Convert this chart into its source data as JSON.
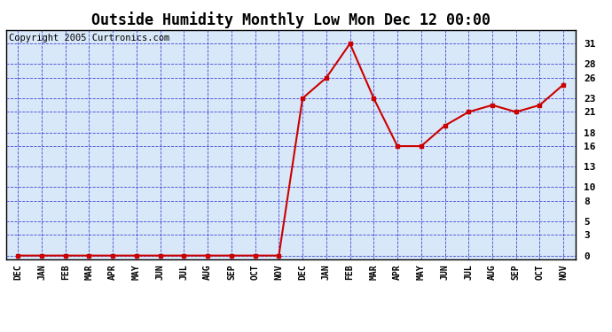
{
  "title": "Outside Humidity Monthly Low Mon Dec 12 00:00",
  "copyright": "Copyright 2005 Curtronics.com",
  "x_labels": [
    "DEC",
    "JAN",
    "FEB",
    "MAR",
    "APR",
    "MAY",
    "JUN",
    "JUL",
    "AUG",
    "SEP",
    "OCT",
    "NOV",
    "DEC",
    "JAN",
    "FEB",
    "MAR",
    "APR",
    "MAY",
    "JUN",
    "JUL",
    "AUG",
    "SEP",
    "OCT",
    "NOV"
  ],
  "y_values": [
    0,
    0,
    0,
    0,
    0,
    0,
    0,
    0,
    0,
    0,
    0,
    0,
    23,
    26,
    31,
    23,
    16,
    16,
    19,
    21,
    22,
    21,
    22,
    25
  ],
  "y_ticks": [
    0,
    3,
    5,
    8,
    10,
    13,
    16,
    18,
    21,
    23,
    26,
    28,
    31
  ],
  "ylim": [
    -0.5,
    33
  ],
  "xlim": [
    -0.5,
    23.5
  ],
  "line_color": "#cc0000",
  "marker_color": "#cc0000",
  "plot_bg": "#d8e8f8",
  "grid_color": "#3333cc",
  "title_fontsize": 12,
  "copyright_fontsize": 7.5
}
